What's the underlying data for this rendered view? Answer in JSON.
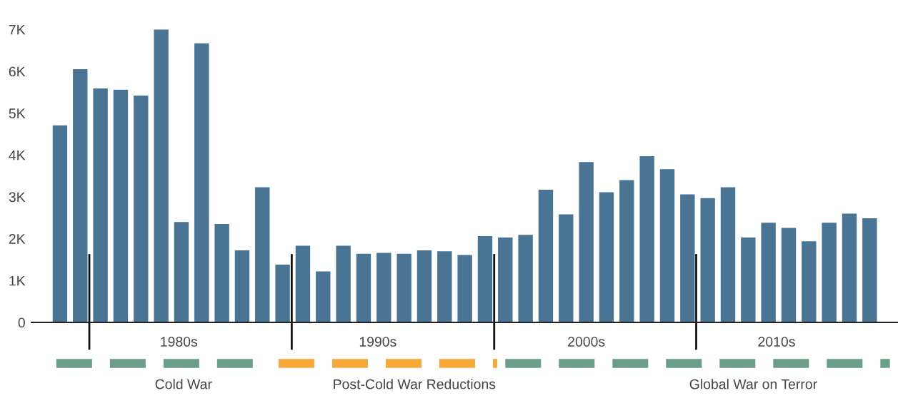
{
  "chart_data": {
    "type": "bar",
    "color": "#4a7493",
    "categories": [
      null,
      null,
      null,
      null,
      null,
      null,
      null,
      null,
      null,
      null,
      null,
      null,
      null,
      null,
      null,
      null,
      null,
      null,
      null,
      null,
      null,
      null,
      null,
      null,
      null,
      null,
      null,
      null,
      null,
      null,
      null,
      null,
      null,
      null,
      null,
      null,
      null,
      null,
      null,
      null,
      null
    ],
    "values": [
      4710,
      6050,
      5590,
      5560,
      5420,
      7000,
      2400,
      6670,
      2350,
      1720,
      3230,
      1380,
      1830,
      1220,
      1830,
      1640,
      1660,
      1640,
      1720,
      1700,
      1610,
      2060,
      2030,
      2090,
      3170,
      2580,
      3830,
      3110,
      3400,
      3970,
      3660,
      3060,
      2970,
      3230,
      2030,
      2380,
      2260,
      1940,
      2380,
      2600,
      2490
    ],
    "ylim": [
      0,
      7000
    ],
    "yticks": [
      0,
      {
        "value": 1000,
        "label": "1K"
      },
      {
        "value": 2000,
        "label": "2K"
      },
      {
        "value": 3000,
        "label": "3K"
      },
      {
        "value": 4000,
        "label": "4K"
      },
      {
        "value": 5000,
        "label": "5K"
      },
      {
        "value": 6000,
        "label": "6K"
      },
      {
        "value": 7000,
        "label": "7K"
      }
    ],
    "annotations": [
      "1980s",
      "1990s",
      "2000s",
      "2010s",
      "Cold War",
      "Post-Cold War Reductions",
      "Global War on Terror"
    ],
    "grid": false,
    "legend": false
  }
}
